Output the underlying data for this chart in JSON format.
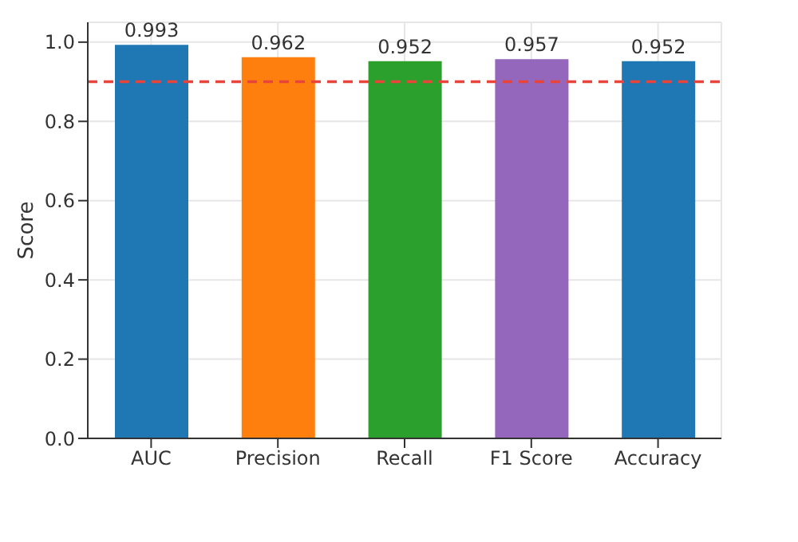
{
  "chart_data": {
    "type": "bar",
    "ylabel": "Score",
    "categories": [
      "AUC",
      "Precision",
      "Recall",
      "F1 Score",
      "Accuracy"
    ],
    "values": [
      0.993,
      0.962,
      0.952,
      0.957,
      0.952
    ],
    "colors": [
      "#1f77b4",
      "#ff7f0e",
      "#2ca02c",
      "#9467bd",
      "#1f77b4"
    ],
    "ylim": [
      0,
      1.05
    ],
    "yticks": [
      {
        "value": 0,
        "label": "0.0"
      },
      0.2,
      0.4,
      0.6,
      0.8,
      {
        "value": 1,
        "label": "1.0"
      }
    ],
    "grid": true,
    "data_labels": true,
    "ref_lines": [
      {
        "axis": "y",
        "value": 0.9,
        "label": null,
        "color": "#e8443a",
        "line_style": "dashed"
      }
    ]
  }
}
